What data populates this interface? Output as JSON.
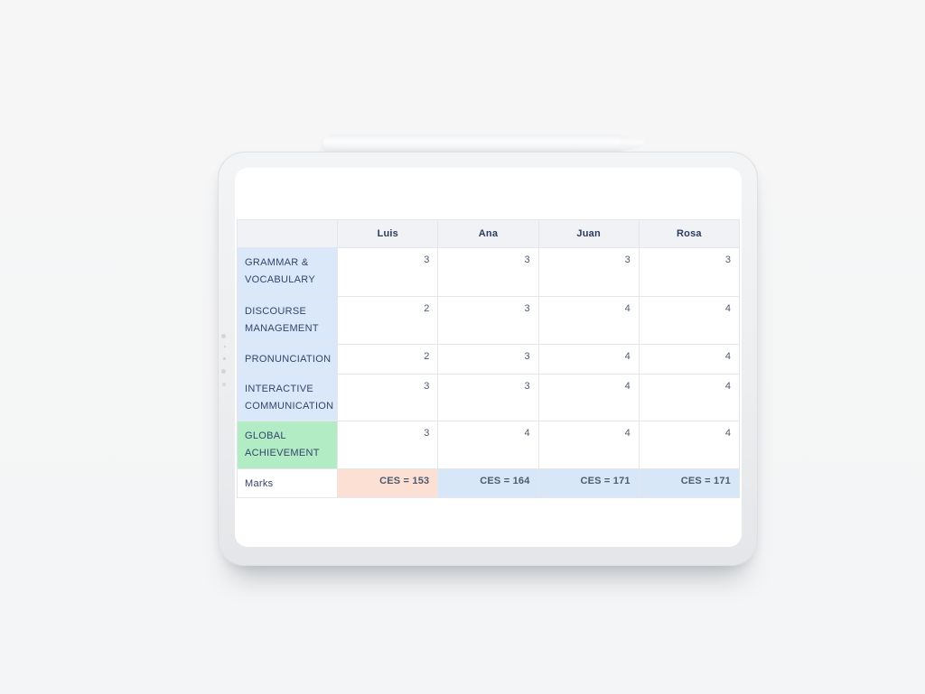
{
  "table": {
    "columns": [
      "",
      "Luis",
      "Ana",
      "Juan",
      "Rosa"
    ],
    "rows": [
      {
        "label": "GRAMMAR & VOCABULARY",
        "label_style": "blue",
        "values": [
          "3",
          "3",
          "3",
          "3"
        ]
      },
      {
        "label": "DISCOURSE MANAGEMENT",
        "label_style": "blue",
        "values": [
          "2",
          "3",
          "4",
          "4"
        ]
      },
      {
        "label": "PRONUNCIATION",
        "label_style": "blue",
        "values": [
          "2",
          "3",
          "4",
          "4"
        ]
      },
      {
        "label": "INTERACTIVE COMMUNICATION",
        "label_style": "blue",
        "values": [
          "3",
          "3",
          "4",
          "4"
        ]
      },
      {
        "label": "GLOBAL ACHIEVEMENT",
        "label_style": "green",
        "values": [
          "3",
          "4",
          "4",
          "4"
        ]
      },
      {
        "label": "Marks",
        "label_style": "plain",
        "values": [
          "CES = 153",
          "CES = 164",
          "CES = 171",
          "CES = 171"
        ],
        "cell_styles": [
          "peach",
          "blue2",
          "blue2",
          "blue2"
        ],
        "bold_values": true
      }
    ]
  },
  "colors": {
    "page_background": "#f5f6f7",
    "tablet_frame": "#eceef0",
    "screen": "#ffffff",
    "table_border": "#e3e6ea",
    "header_row_bg": "#f0f2f5",
    "criteria_label_bg": "#dbe8f9",
    "global_achievement_bg": "#b2ecc5",
    "ces_153_bg": "#fce0d4",
    "ces_blue_bg": "#d8e7f7",
    "heading_text": "#2b3c5e",
    "label_text": "#33456a",
    "value_text": "#4e5a6e"
  }
}
